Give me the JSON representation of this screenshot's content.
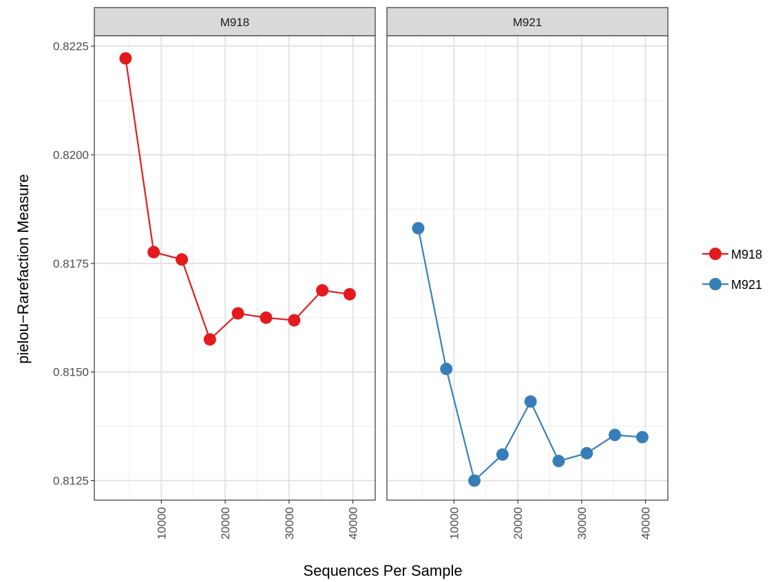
{
  "chart_data": {
    "type": "line",
    "xlabel": "Sequences Per Sample",
    "ylabel": "pielou−Rarefaction Measure",
    "xlim": [
      -500,
      43500
    ],
    "ylim": [
      0.81205,
      0.82274
    ],
    "x_ticks": [
      10000,
      20000,
      30000,
      40000
    ],
    "x_tick_labels": [
      "10000",
      "20000",
      "30000",
      "40000"
    ],
    "y_ticks": [
      0.8125,
      0.815,
      0.8175,
      0.82,
      0.8225
    ],
    "y_tick_labels": [
      "0.8125",
      "0.8150",
      "0.8175",
      "0.8200",
      "0.8225"
    ],
    "grid": true,
    "legend_position": "right",
    "panels": [
      {
        "strip_label": "M918",
        "series": "M918",
        "x": [
          4400,
          8800,
          13200,
          17600,
          22000,
          26400,
          30800,
          35200,
          39500
        ],
        "y": [
          0.82222,
          0.81776,
          0.81759,
          0.81575,
          0.81635,
          0.81625,
          0.81619,
          0.81688,
          0.81679
        ]
      },
      {
        "strip_label": "M921",
        "series": "M921",
        "x": [
          4400,
          8800,
          13200,
          17600,
          22000,
          26400,
          30800,
          35200,
          39500
        ],
        "y": [
          0.81831,
          0.81507,
          0.8125,
          0.8131,
          0.81432,
          0.81295,
          0.81313,
          0.81355,
          0.8135
        ]
      }
    ],
    "series": [
      {
        "name": "M918",
        "color": "#e41a1c"
      },
      {
        "name": "M921",
        "color": "#377eb8"
      }
    ]
  }
}
